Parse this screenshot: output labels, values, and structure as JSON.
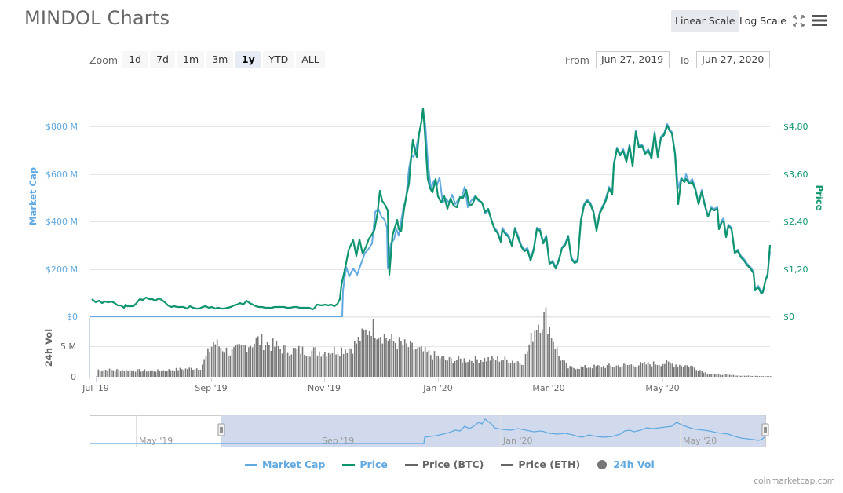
{
  "header": {
    "title": "MINDOL Charts",
    "scale_buttons": [
      {
        "label": "Linear Scale",
        "active": true
      },
      {
        "label": "Log Scale",
        "active": false
      }
    ],
    "icons": [
      "fullscreen-icon",
      "menu-icon"
    ]
  },
  "zoom": {
    "label": "Zoom",
    "buttons": [
      {
        "label": "1d",
        "active": false
      },
      {
        "label": "7d",
        "active": false
      },
      {
        "label": "1m",
        "active": false
      },
      {
        "label": "3m",
        "active": false
      },
      {
        "label": "1y",
        "active": true
      },
      {
        "label": "YTD",
        "active": false
      },
      {
        "label": "ALL",
        "active": false
      }
    ]
  },
  "range": {
    "from_label": "From",
    "from_value": "Jun 27, 2019",
    "to_label": "To",
    "to_value": "Jun 27, 2020"
  },
  "colors": {
    "market_cap": "#62a9e0",
    "price": "#0e9570",
    "price_btc": "#666666",
    "price_eth": "#666666",
    "volume": "#777777",
    "navigator_fill": "#ccd6eb"
  },
  "legend": [
    {
      "label": "Market Cap",
      "color": "#62a9e0",
      "type": "line",
      "text_color": "#62a9e0"
    },
    {
      "label": "Price",
      "color": "#0e9570",
      "type": "line",
      "text_color": "#62a9e0"
    },
    {
      "label": "Price (BTC)",
      "color": "#666666",
      "type": "line",
      "text_color": "#666666"
    },
    {
      "label": "Price (ETH)",
      "color": "#666666",
      "type": "line",
      "text_color": "#666666"
    },
    {
      "label": "24h Vol",
      "color": "#777777",
      "type": "dot",
      "text_color": "#62a9e0"
    }
  ],
  "credit": "coinmarketcap.com",
  "chart_data": {
    "type": "line",
    "title": "MINDOL Charts",
    "x_tick_labels": [
      "Jul '19",
      "Sep '19",
      "Nov '19",
      "Jan '20",
      "Mar '20",
      "May '20"
    ],
    "x_range": [
      "Jun 27, 2019",
      "Jun 27, 2020"
    ],
    "left_axis": {
      "label": "Market Cap",
      "ticks": [
        "$0",
        "$200 M",
        "$400 M",
        "$600 M",
        "$800 M"
      ],
      "ylim": [
        0,
        800
      ]
    },
    "right_axis": {
      "label": "Price",
      "ticks": [
        "$0",
        "$1,20",
        "$2,40",
        "$3,60",
        "$4,80"
      ],
      "ylim": [
        0,
        4.8
      ]
    },
    "volume_axis": {
      "label": "24h Vol",
      "ticks": [
        "0",
        "5 M"
      ]
    },
    "navigator_tick_labels": [
      "May '19",
      "Sep '19",
      "Jan '20",
      "May '20"
    ],
    "grid": true,
    "legend_position": "bottom",
    "series": [
      {
        "name": "Price",
        "unit": "USD",
        "points": [
          [
            "2019-06-27",
            0.46
          ],
          [
            "2019-07-05",
            0.4
          ],
          [
            "2019-07-15",
            0.38
          ],
          [
            "2019-07-25",
            0.36
          ],
          [
            "2019-08-01",
            0.52
          ],
          [
            "2019-08-10",
            0.48
          ],
          [
            "2019-08-20",
            0.33
          ],
          [
            "2019-09-01",
            0.31
          ],
          [
            "2019-09-10",
            0.3
          ],
          [
            "2019-09-20",
            0.4
          ],
          [
            "2019-09-25",
            0.34
          ],
          [
            "2019-10-05",
            0.3
          ],
          [
            "2019-10-20",
            0.3
          ],
          [
            "2019-11-01",
            0.3
          ],
          [
            "2019-11-05",
            0.25
          ],
          [
            "2019-11-08",
            0.35
          ],
          [
            "2019-11-12",
            1.1
          ],
          [
            "2019-11-15",
            1.8
          ],
          [
            "2019-11-20",
            1.5
          ],
          [
            "2019-11-27",
            2.2
          ],
          [
            "2019-12-01",
            3.2
          ],
          [
            "2019-12-03",
            2.4
          ],
          [
            "2019-12-08",
            2.8
          ],
          [
            "2019-12-12",
            4.2
          ],
          [
            "2019-12-16",
            3.6
          ],
          [
            "2019-12-20",
            4.5
          ],
          [
            "2019-12-24",
            5.2
          ],
          [
            "2019-12-28",
            3.4
          ],
          [
            "2020-01-02",
            3.0
          ],
          [
            "2020-01-05",
            3.1
          ],
          [
            "2020-01-15",
            2.9
          ],
          [
            "2020-01-25",
            2.8
          ],
          [
            "2020-02-05",
            2.3
          ],
          [
            "2020-02-15",
            1.8
          ],
          [
            "2020-02-25",
            2.3
          ],
          [
            "2020-03-05",
            1.4
          ],
          [
            "2020-03-12",
            1.2
          ],
          [
            "2020-03-20",
            1.6
          ],
          [
            "2020-03-25",
            1.45
          ],
          [
            "2020-04-01",
            2.7
          ],
          [
            "2020-04-10",
            2.9
          ],
          [
            "2020-04-15",
            2.3
          ],
          [
            "2020-04-22",
            3.2
          ],
          [
            "2020-04-25",
            4.4
          ],
          [
            "2020-05-01",
            4.3
          ],
          [
            "2020-05-05",
            3.7
          ],
          [
            "2020-05-10",
            2.9
          ],
          [
            "2020-05-15",
            4.7
          ],
          [
            "2020-05-20",
            4.9
          ],
          [
            "2020-05-25",
            3.3
          ],
          [
            "2020-06-01",
            3.4
          ],
          [
            "2020-06-05",
            2.6
          ],
          [
            "2020-06-12",
            2.4
          ],
          [
            "2020-06-17",
            1.5
          ],
          [
            "2020-06-22",
            0.7
          ],
          [
            "2020-06-25",
            0.8
          ],
          [
            "2020-06-27",
            1.82
          ]
        ]
      },
      {
        "name": "Market Cap",
        "unit": "USD millions",
        "note": "Approximately 0 until early Nov 2019, then tracks price",
        "points": [
          [
            "2019-06-27",
            0
          ],
          [
            "2019-11-06",
            0
          ],
          [
            "2019-11-08",
            180
          ],
          [
            "2019-11-15",
            250
          ],
          [
            "2019-11-27",
            330
          ],
          [
            "2019-12-01",
            500
          ],
          [
            "2019-12-12",
            680
          ],
          [
            "2019-12-24",
            865
          ],
          [
            "2019-12-28",
            560
          ],
          [
            "2020-01-15",
            480
          ],
          [
            "2020-02-15",
            300
          ],
          [
            "2020-03-12",
            200
          ],
          [
            "2020-04-25",
            735
          ],
          [
            "2020-05-20",
            820
          ],
          [
            "2020-06-01",
            570
          ],
          [
            "2020-06-22",
            115
          ],
          [
            "2020-06-27",
            300
          ]
        ]
      },
      {
        "name": "24h Vol",
        "unit": "USD millions",
        "points": [
          [
            "2019-07-01",
            1.2
          ],
          [
            "2019-08-01",
            1.0
          ],
          [
            "2019-08-25",
            1.5
          ],
          [
            "2019-09-01",
            5.8
          ],
          [
            "2019-09-10",
            4.0
          ],
          [
            "2019-09-25",
            6.1
          ],
          [
            "2019-10-10",
            4.5
          ],
          [
            "2019-11-01",
            4.2
          ],
          [
            "2019-11-15",
            5.0
          ],
          [
            "2019-11-25",
            8.5
          ],
          [
            "2019-12-05",
            6.2
          ],
          [
            "2019-12-20",
            4.5
          ],
          [
            "2020-01-05",
            2.8
          ],
          [
            "2020-02-01",
            3.0
          ],
          [
            "2020-02-15",
            2.5
          ],
          [
            "2020-02-22",
            9.0
          ],
          [
            "2020-02-27",
            10.0
          ],
          [
            "2020-03-05",
            3.5
          ],
          [
            "2020-03-10",
            1.5
          ],
          [
            "2020-04-15",
            2.0
          ],
          [
            "2020-05-01",
            2.3
          ],
          [
            "2020-05-15",
            1.8
          ],
          [
            "2020-05-25",
            0.5
          ],
          [
            "2020-06-10",
            0.2
          ],
          [
            "2020-06-27",
            0.1
          ]
        ]
      }
    ]
  }
}
